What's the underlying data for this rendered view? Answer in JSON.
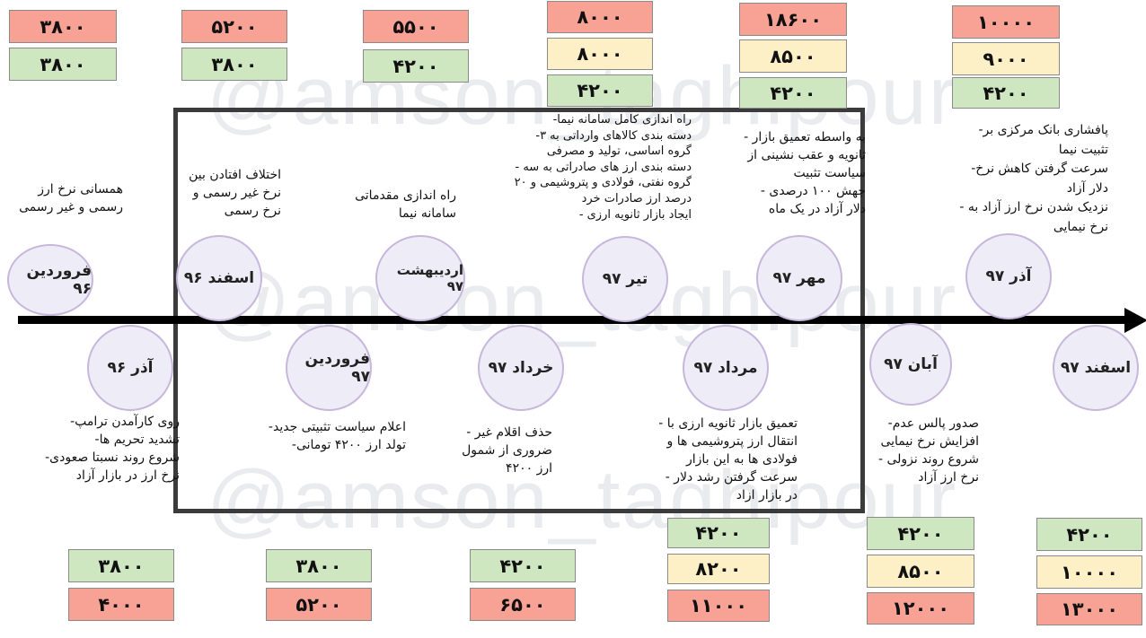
{
  "watermark": "@amson_taghipour",
  "frames": [
    {
      "id": "farvardin96",
      "label": "فروردین ۹۶",
      "note": [
        "همسانی نرخ ارز",
        "رسمی و غیر رسمی"
      ],
      "official": "۳۸۰۰",
      "free": "۳۸۰۰"
    },
    {
      "id": "azar96",
      "label": "آذر ۹۶",
      "note": [
        "روی کارآمدن ترامپ-",
        "تشدید تحریم ها-",
        "شروع روند نسبتا صعودی-",
        "نرخ ارز در بازار آزاد"
      ],
      "official": "۳۸۰۰",
      "free": "۴۰۰۰"
    },
    {
      "id": "esfand96",
      "label": "اسفند ۹۶",
      "note": [
        "اختلاف افتادن بین",
        "نرخ غیر رسمی و",
        "نرخ رسمی"
      ],
      "official": "۳۸۰۰",
      "free": "۵۲۰۰"
    },
    {
      "id": "farvardin97",
      "label": "فروردین ۹۷",
      "note": [
        "اعلام سیاست تثبیتی جدید-",
        "تولد ارز ۴۲۰۰ تومانی-"
      ],
      "official": "۳۸۰۰",
      "free": "۵۲۰۰"
    },
    {
      "id": "ordibehesht97",
      "label": "اردیبهشت ۹۷",
      "note": [
        "راه اندازی مقدماتی",
        "سامانه نیما"
      ],
      "official": "۴۲۰۰",
      "free": "۵۵۰۰"
    },
    {
      "id": "khordad97",
      "label": "خرداد ۹۷",
      "note": [
        "حذف اقلام غیر -",
        "ضروری از شمول",
        "ارز ۴۲۰۰"
      ],
      "official": "۴۲۰۰",
      "free": "۶۵۰۰"
    },
    {
      "id": "tir97",
      "label": "تیر ۹۷",
      "note": [
        "راه اندازی کامل سامانه نیما-",
        "دسته بندی کالاهای وارداتی به ۳-",
        "گروه اساسی، تولید و مصرفی",
        "دسته بندی ارز های صادراتی به سه -",
        "گروه نفتی، فولادی و پتروشیمی و ۲۰",
        "درصد ارز صادرات خرد",
        "ایجاد بازار ثانویه ارزی -"
      ],
      "official": "۴۲۰۰",
      "secondary": "۸۰۰۰",
      "free": "۸۰۰۰"
    },
    {
      "id": "mordad97",
      "label": "مرداد ۹۷",
      "note": [
        "تعمیق بازار ثانویه ارزی با -",
        "انتقال ارز پتروشیمی ها و",
        "فولادی ها به این بازار",
        "سرعت گرفتن رشد دلار -",
        "در بازار ازاد"
      ],
      "official": "۴۲۰۰",
      "secondary": "۸۲۰۰",
      "free": "۱۱۰۰۰"
    },
    {
      "id": "mehr97",
      "label": "مهر ۹۷",
      "note": [
        "به واسطه تعمیق بازار -",
        "ثانویه و عقب نشینی از",
        "سیاست تثبیت",
        "جهش ۱۰۰ درصدی -",
        "دلار آزاد در یک ماه"
      ],
      "official": "۴۲۰۰",
      "secondary": "۸۵۰۰",
      "free": "۱۸۶۰۰"
    },
    {
      "id": "aban97",
      "label": "آبان ۹۷",
      "note": [
        "صدور پالس عدم-",
        "افزایش نرخ نیمایی",
        "شروع روند نزولی -",
        "نرخ ارز آزاد"
      ],
      "official": "۴۲۰۰",
      "secondary": "۸۵۰۰",
      "free": "۱۲۰۰۰"
    },
    {
      "id": "azar97",
      "label": "آذر ۹۷",
      "note": [
        "پافشاری بانک مرکزی بر-",
        "تثبیت نیما",
        "سرعت گرفتن کاهش نرخ-",
        "دلار آزاد",
        "نزدیک شدن نرخ ارز آزاد به -",
        "نرخ نیمایی"
      ],
      "official": "۴۲۰۰",
      "secondary": "۹۰۰۰",
      "free": "۱۰۰۰۰"
    },
    {
      "id": "esfand97",
      "label": "اسفند ۹۷",
      "note": [],
      "official": "۴۲۰۰",
      "secondary": "۱۰۰۰۰",
      "free": "۱۳۰۰۰"
    }
  ],
  "colors": {
    "official": "#cfe7c0",
    "free": "#f8a195",
    "secondary": "#fdf0c6",
    "circle_fill": "#eeedf7",
    "circle_border": "#c7b7dc",
    "axis": "#000000",
    "frame": "#3b3b3b"
  }
}
